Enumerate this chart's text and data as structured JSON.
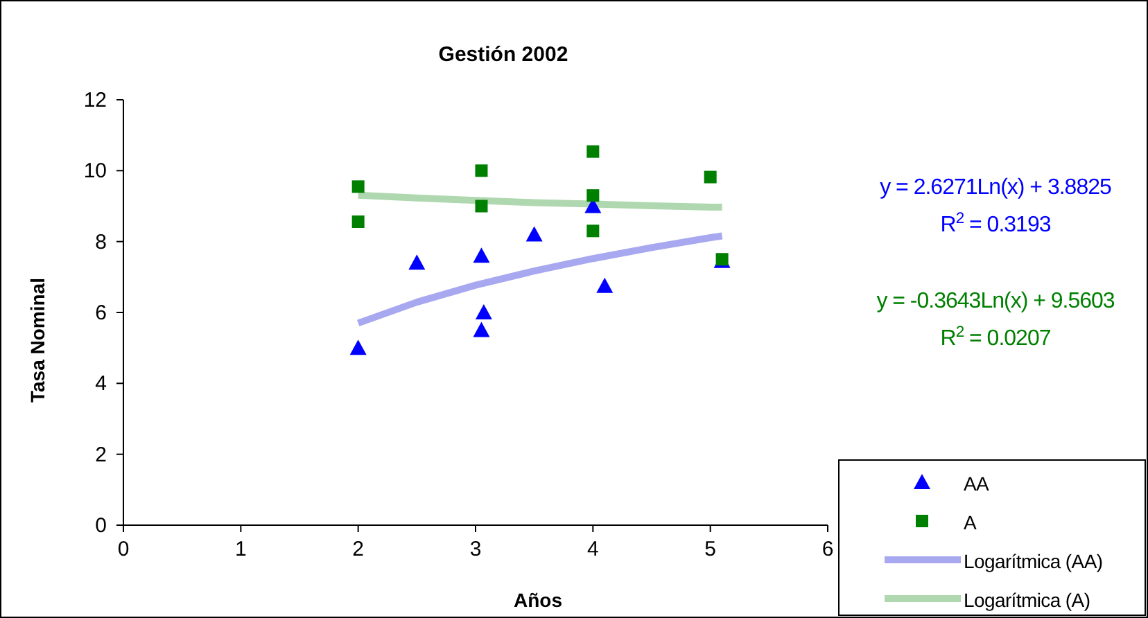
{
  "chart_data": {
    "type": "scatter",
    "title": "Gestión 2002",
    "xlabel": "Años",
    "ylabel": "Tasa Nominal",
    "xlim": [
      0,
      6
    ],
    "xticks": [
      0,
      1,
      2,
      3,
      4,
      5,
      6
    ],
    "ylim": [
      0,
      12
    ],
    "yticks": [
      0,
      2,
      4,
      6,
      8,
      10,
      12
    ],
    "grid": false,
    "legend": "bottom right",
    "series": [
      {
        "name": "AA",
        "marker": "triangle",
        "color": "#0000ff",
        "x": [
          2,
          2.5,
          3.05,
          3.07,
          3.05,
          3.5,
          4,
          4.1,
          5.1
        ],
        "values": [
          5.0,
          7.4,
          7.6,
          6.0,
          5.5,
          8.2,
          9.0,
          6.75,
          7.45
        ]
      },
      {
        "name": "A",
        "marker": "square",
        "color": "#008000",
        "x": [
          2,
          2,
          3.05,
          3.05,
          4,
          4,
          4,
          5,
          5.1
        ],
        "values": [
          9.55,
          8.56,
          10.0,
          9.0,
          10.54,
          9.3,
          8.3,
          9.82,
          7.5
        ]
      },
      {
        "name": "Logarítmica (AA)",
        "type": "line",
        "line_style": "solid",
        "color": "#a8a8f0",
        "x": [
          2,
          2.5,
          3,
          3.5,
          4,
          4.5,
          5,
          5.1
        ],
        "values": [
          5.7,
          6.29,
          6.77,
          7.17,
          7.52,
          7.83,
          8.11,
          8.16
        ]
      },
      {
        "name": "Logarítmica (A)",
        "type": "line",
        "line_style": "solid",
        "color": "#b0d8b0",
        "x": [
          2,
          2.5,
          3,
          3.5,
          4,
          4.5,
          5,
          5.1
        ],
        "values": [
          9.31,
          9.23,
          9.16,
          9.1,
          9.06,
          9.01,
          8.97,
          8.97
        ]
      }
    ],
    "annotations": [
      "y = 2.6271Ln(x) + 3.8825",
      "R$^{2}$ = 0.3193",
      "y = -0.3643Ln(x) + 9.5603",
      "R$^{2}$ = 0.0207"
    ]
  }
}
